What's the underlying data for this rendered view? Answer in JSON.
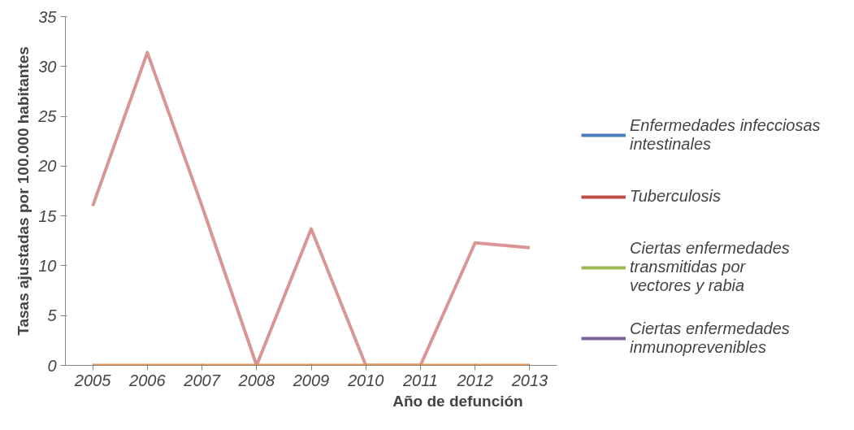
{
  "chart_data": {
    "type": "line",
    "xlabel": "Año de defunción",
    "ylabel": "Tasas ajustadas por 100.000 habitantes",
    "categories": [
      "2005",
      "2006",
      "2007",
      "2008",
      "2009",
      "2010",
      "2011",
      "2012",
      "2013"
    ],
    "series": [
      {
        "name": "Enfermedades infecciosas intestinales",
        "color": "#4a7ebb",
        "values": [
          null,
          null,
          null,
          null,
          null,
          null,
          null,
          null,
          null
        ]
      },
      {
        "name": "Tuberculosis",
        "color": "#be4b48",
        "values": [
          null,
          null,
          null,
          null,
          null,
          null,
          null,
          null,
          null
        ]
      },
      {
        "name": "Ciertas enfermedades transmitidas por vectores y rabia",
        "color": "#98b954",
        "values": [
          null,
          null,
          null,
          null,
          null,
          null,
          null,
          null,
          null
        ]
      },
      {
        "name": "Ciertas enfermedades inmunoprevenibles",
        "color": "#7d60a0",
        "values": [
          null,
          null,
          null,
          null,
          null,
          null,
          null,
          null,
          null
        ]
      },
      {
        "color": "#d99694",
        "values": [
          16,
          31.4,
          16,
          0,
          13.7,
          0,
          0,
          12.3,
          11.8
        ]
      },
      {
        "color": "#f79646",
        "values": [
          0,
          0,
          0,
          0,
          0,
          0,
          0,
          0,
          0
        ]
      }
    ],
    "ylim": [
      0,
      35
    ],
    "yticks": [
      0,
      5,
      10,
      15,
      20,
      25,
      30,
      35
    ],
    "grid": false,
    "legend": "right",
    "marker": "none",
    "line_style": "solid"
  }
}
